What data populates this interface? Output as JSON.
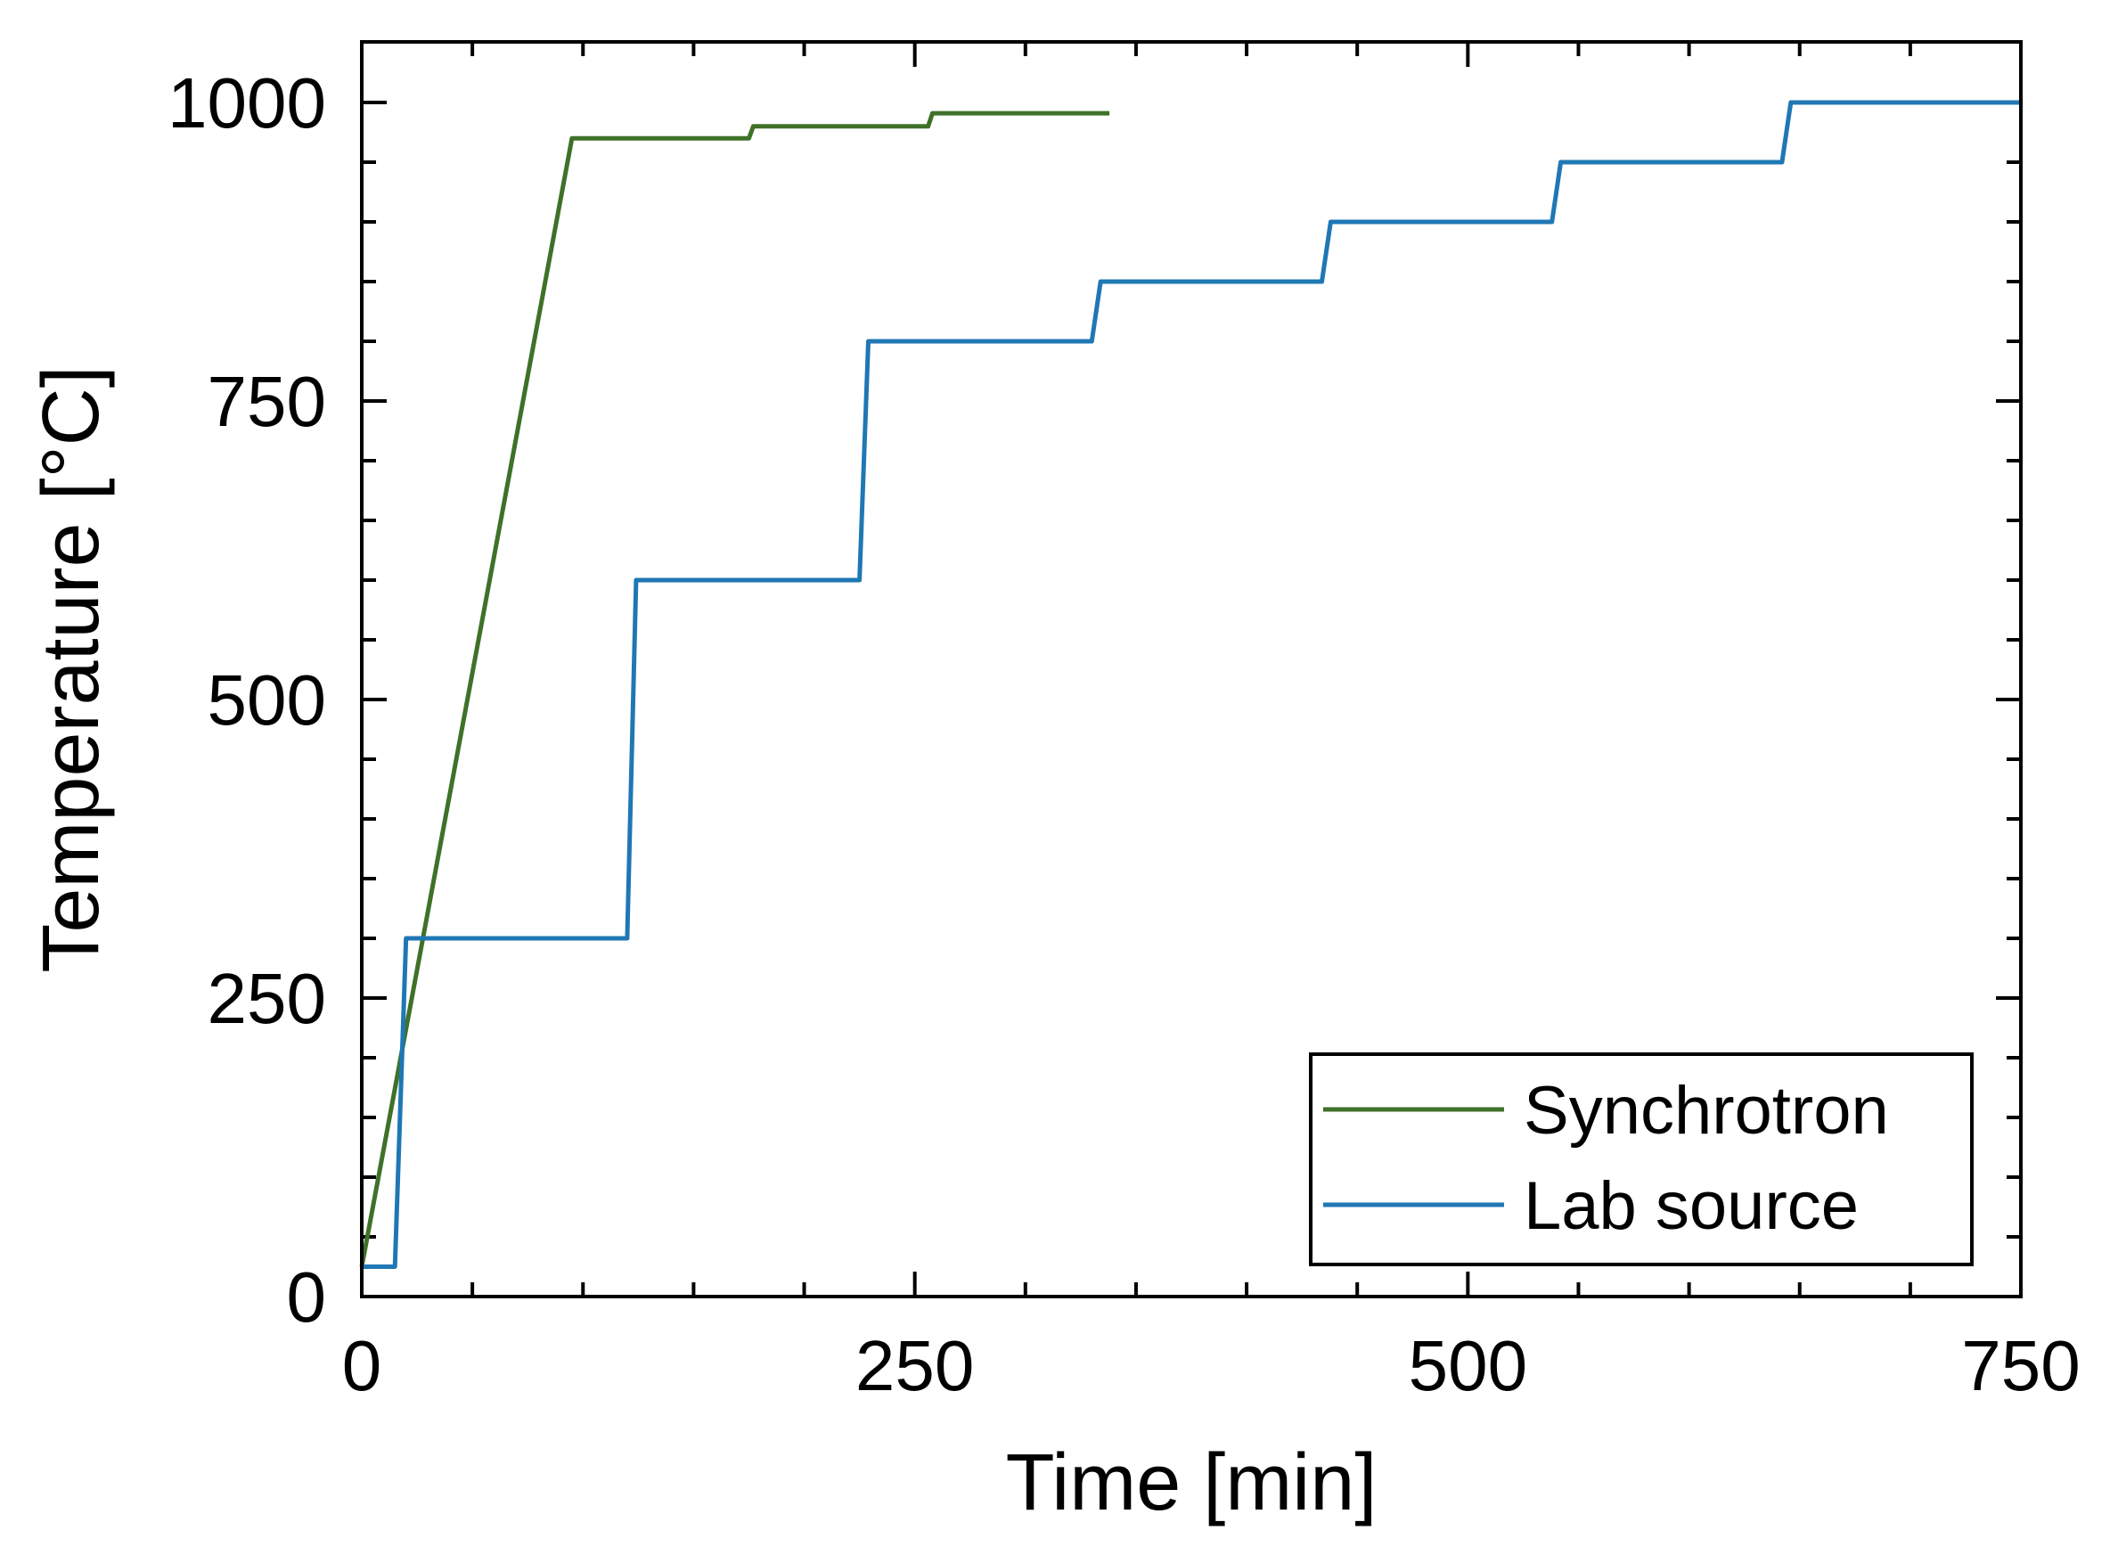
{
  "chart_data": {
    "type": "line",
    "title": "",
    "xlabel": "Time [min]",
    "ylabel": "Temperature [°C]",
    "xlim": [
      0,
      750
    ],
    "ylim": [
      0,
      1000
    ],
    "xticks": [
      0,
      250,
      500,
      750
    ],
    "xtick_labels": [
      "0",
      "250",
      "500",
      "750"
    ],
    "yticks": [
      0,
      250,
      500,
      750,
      1000
    ],
    "ytick_labels": [
      "0",
      "250",
      "500",
      "750",
      "1000"
    ],
    "x_minor_step": 50,
    "y_minor_step": 50,
    "grid": false,
    "legend_position": "bottom-right",
    "series": [
      {
        "name": "Synchrotron",
        "color": "#3f7129",
        "x": [
          0,
          95,
          175,
          177,
          256,
          258,
          338
        ],
        "y": [
          25,
          970,
          970,
          980,
          980,
          991,
          991
        ]
      },
      {
        "name": "Lab source",
        "color": "#1f77b4",
        "x": [
          0,
          15,
          20,
          120,
          124,
          225,
          229,
          330,
          334,
          434,
          438,
          538,
          542,
          642,
          646,
          750
        ],
        "y": [
          25,
          25,
          300,
          300,
          600,
          600,
          800,
          800,
          850,
          850,
          900,
          900,
          950,
          950,
          1000,
          1000
        ]
      }
    ]
  }
}
